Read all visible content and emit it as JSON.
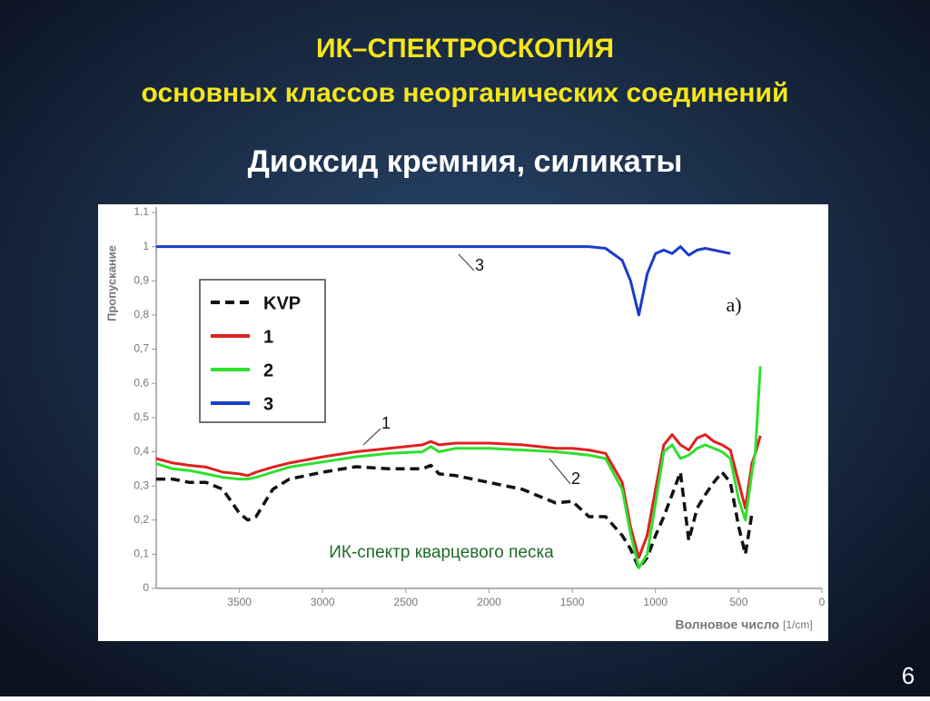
{
  "header": {
    "title": "ИК–СПЕКТРОСКОПИЯ",
    "subtitle": "основных классов неорганических соединений",
    "heading": "Диоксид кремния, силикаты"
  },
  "page_number": "6",
  "chart_data": {
    "type": "line",
    "y_label": "Пропускание",
    "x_label": "Волновое число",
    "x_unit": "[1/cm]",
    "caption": "ИК-спектр кварцевого песка",
    "panel_label": "а)",
    "curve_labels": [
      {
        "text": "1",
        "series": 1
      },
      {
        "text": "2",
        "series": 2
      },
      {
        "text": "3",
        "series": 3
      }
    ],
    "x": [
      4000,
      3900,
      3800,
      3700,
      3600,
      3500,
      3450,
      3400,
      3300,
      3200,
      3000,
      2800,
      2600,
      2400,
      2350,
      2300,
      2200,
      2000,
      1800,
      1600,
      1500,
      1400,
      1300,
      1200,
      1150,
      1100,
      1050,
      1000,
      950,
      900,
      850,
      800,
      750,
      700,
      650,
      600,
      550,
      500,
      460,
      420,
      400,
      370
    ],
    "series": [
      {
        "name": "KVP",
        "color": "#111111",
        "line_style": "dashed",
        "values": [
          0.32,
          0.32,
          0.31,
          0.31,
          0.29,
          0.22,
          0.2,
          0.21,
          0.29,
          0.32,
          0.34,
          0.356,
          0.35,
          0.35,
          0.36,
          0.335,
          0.33,
          0.31,
          0.29,
          0.25,
          0.255,
          0.21,
          0.21,
          0.155,
          0.115,
          0.06,
          0.09,
          0.155,
          0.21,
          0.275,
          0.34,
          0.14,
          0.235,
          0.275,
          0.31,
          0.34,
          0.31,
          0.18,
          0.1,
          0.22,
          null,
          null
        ]
      },
      {
        "name": "1",
        "color": "#e02020",
        "line_style": "solid",
        "values": [
          0.38,
          0.367,
          0.36,
          0.355,
          0.34,
          0.335,
          0.33,
          0.34,
          0.355,
          0.367,
          0.385,
          0.4,
          0.41,
          0.42,
          0.43,
          0.42,
          0.425,
          0.425,
          0.42,
          0.41,
          0.41,
          0.405,
          0.395,
          0.31,
          0.18,
          0.09,
          0.155,
          0.29,
          0.42,
          0.45,
          0.42,
          0.405,
          0.44,
          0.45,
          0.43,
          0.42,
          0.405,
          0.31,
          0.235,
          0.367,
          0.395,
          0.447
        ]
      },
      {
        "name": "2",
        "color": "#2ee02e",
        "line_style": "solid",
        "values": [
          0.365,
          0.35,
          0.345,
          0.335,
          0.325,
          0.32,
          0.32,
          0.325,
          0.34,
          0.355,
          0.37,
          0.385,
          0.395,
          0.4,
          0.415,
          0.4,
          0.41,
          0.41,
          0.405,
          0.4,
          0.395,
          0.39,
          0.38,
          0.29,
          0.16,
          0.06,
          0.1,
          0.25,
          0.4,
          0.42,
          0.38,
          0.39,
          0.41,
          0.42,
          0.41,
          0.4,
          0.38,
          0.26,
          0.2,
          0.34,
          0.4,
          0.65
        ]
      },
      {
        "name": "3",
        "color": "#1a3cc8",
        "line_style": "solid",
        "values": [
          1,
          1,
          1,
          1,
          1,
          1,
          1,
          1,
          1,
          1,
          1,
          1,
          1,
          1,
          1,
          1,
          1,
          1,
          1,
          1,
          1,
          1,
          0.995,
          0.96,
          0.9,
          0.8,
          0.92,
          0.98,
          0.99,
          0.98,
          1,
          0.975,
          0.99,
          0.995,
          0.99,
          0.985,
          0.98,
          null,
          null,
          null,
          null,
          null
        ]
      }
    ],
    "xlim": [
      4000,
      0
    ],
    "xticks": [
      3500,
      3000,
      2500,
      2000,
      1500,
      1000,
      500,
      0
    ],
    "ylim": [
      0,
      1.1
    ],
    "yticks": [
      0,
      {
        "value": 0.1,
        "label": "0,1"
      },
      {
        "value": 0.2,
        "label": "0,2"
      },
      {
        "value": 0.3,
        "label": "0,3"
      },
      {
        "value": 0.4,
        "label": "0,4"
      },
      {
        "value": 0.5,
        "label": "0,5"
      },
      {
        "value": 0.6,
        "label": "0,6"
      },
      {
        "value": 0.7,
        "label": "0,7"
      },
      {
        "value": 0.8,
        "label": "0,8"
      },
      {
        "value": 0.9,
        "label": "0,9"
      },
      1,
      {
        "value": 1.1,
        "label": "1,1"
      }
    ],
    "grid": false,
    "legend": "upper left"
  }
}
